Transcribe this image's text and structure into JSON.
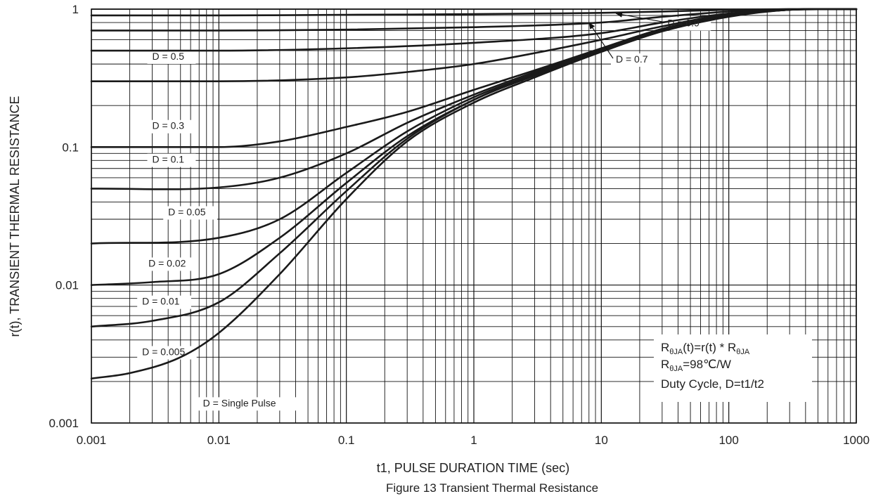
{
  "chart_data": {
    "type": "line",
    "title": "Figure 13 Transient Thermal Resistance",
    "xlabel": "t1, PULSE DURATION TIME (sec)",
    "ylabel": "r(t), TRANSIENT THERMAL RESISTANCE",
    "xscale": "log",
    "yscale": "log",
    "xlim": [
      0.001,
      1000
    ],
    "ylim": [
      0.001,
      1
    ],
    "grid": true,
    "x_ticks": [
      "0.001",
      "0.01",
      "0.1",
      "1",
      "10",
      "100",
      "1000"
    ],
    "y_ticks": [
      "0.001",
      "0.01",
      "0.1",
      "1"
    ],
    "series": [
      {
        "name": "D = 0.9",
        "x": [
          0.001,
          0.01,
          0.1,
          1,
          10,
          30,
          100,
          300,
          1000
        ],
        "y": [
          0.9,
          0.9,
          0.91,
          0.92,
          0.94,
          0.96,
          0.99,
          1.0,
          1.0
        ]
      },
      {
        "name": "D = 0.7",
        "x": [
          0.001,
          0.01,
          0.1,
          1,
          10,
          30,
          100,
          300,
          1000
        ],
        "y": [
          0.7,
          0.7,
          0.71,
          0.74,
          0.8,
          0.88,
          0.96,
          1.0,
          1.0
        ]
      },
      {
        "name": "D = 0.5",
        "x": [
          0.001,
          0.01,
          0.1,
          1,
          10,
          30,
          100,
          300,
          1000
        ],
        "y": [
          0.5,
          0.5,
          0.52,
          0.57,
          0.67,
          0.8,
          0.93,
          0.99,
          1.0
        ]
      },
      {
        "name": "D = 0.3",
        "x": [
          0.001,
          0.01,
          0.1,
          0.3,
          1,
          3,
          10,
          30,
          100,
          300,
          1000
        ],
        "y": [
          0.3,
          0.3,
          0.32,
          0.35,
          0.4,
          0.48,
          0.6,
          0.75,
          0.92,
          0.99,
          1.0
        ]
      },
      {
        "name": "D = 0.1",
        "x": [
          0.001,
          0.01,
          0.03,
          0.1,
          0.3,
          1,
          3,
          10,
          30,
          100,
          300,
          1000
        ],
        "y": [
          0.1,
          0.1,
          0.11,
          0.14,
          0.18,
          0.26,
          0.36,
          0.52,
          0.72,
          0.9,
          0.99,
          1.0
        ]
      },
      {
        "name": "D = 0.05",
        "x": [
          0.001,
          0.01,
          0.03,
          0.1,
          0.3,
          1,
          3,
          10,
          30,
          100,
          300,
          1000
        ],
        "y": [
          0.05,
          0.051,
          0.06,
          0.09,
          0.15,
          0.24,
          0.35,
          0.51,
          0.71,
          0.89,
          0.99,
          1.0
        ]
      },
      {
        "name": "D = 0.02",
        "x": [
          0.001,
          0.01,
          0.03,
          0.1,
          0.3,
          1,
          3,
          10,
          30,
          100,
          300,
          1000
        ],
        "y": [
          0.02,
          0.022,
          0.03,
          0.065,
          0.13,
          0.23,
          0.34,
          0.5,
          0.7,
          0.89,
          0.99,
          1.0
        ]
      },
      {
        "name": "D = 0.01",
        "x": [
          0.001,
          0.003,
          0.01,
          0.03,
          0.1,
          0.3,
          1,
          3,
          10,
          30,
          100,
          300,
          1000
        ],
        "y": [
          0.01,
          0.0105,
          0.012,
          0.022,
          0.055,
          0.12,
          0.22,
          0.34,
          0.5,
          0.7,
          0.89,
          0.99,
          1.0
        ]
      },
      {
        "name": "D = 0.005",
        "x": [
          0.001,
          0.003,
          0.01,
          0.03,
          0.1,
          0.3,
          1,
          3,
          10,
          30,
          100,
          300,
          1000
        ],
        "y": [
          0.005,
          0.0055,
          0.0075,
          0.017,
          0.048,
          0.115,
          0.22,
          0.33,
          0.5,
          0.7,
          0.89,
          0.99,
          1.0
        ]
      },
      {
        "name": "D = Single Pulse",
        "x": [
          0.001,
          0.002,
          0.005,
          0.01,
          0.03,
          0.1,
          0.3,
          1,
          3,
          10,
          30,
          100,
          300,
          1000
        ],
        "y": [
          0.0021,
          0.0023,
          0.003,
          0.0045,
          0.012,
          0.042,
          0.11,
          0.21,
          0.32,
          0.49,
          0.69,
          0.88,
          0.99,
          1.0
        ]
      }
    ],
    "annotations": [
      {
        "text": "D = 0.9",
        "x": 33,
        "y": 0.75,
        "arrow_to": [
          13,
          0.93
        ]
      },
      {
        "text": "D = 0.7",
        "x": 13,
        "y": 0.41,
        "arrow_to": [
          8,
          0.8
        ]
      },
      {
        "text": "D = 0.5",
        "x": 0.003,
        "y": 0.43
      },
      {
        "text": "D = 0.3",
        "x": 0.003,
        "y": 0.135
      },
      {
        "text": "D = 0.1",
        "x": 0.003,
        "y": 0.077
      },
      {
        "text": "D = 0.05",
        "x": 0.004,
        "y": 0.032
      },
      {
        "text": "D = 0.02",
        "x": 0.0028,
        "y": 0.0136
      },
      {
        "text": "D = 0.01",
        "x": 0.0025,
        "y": 0.0072
      },
      {
        "text": "D = 0.005",
        "x": 0.0025,
        "y": 0.0031
      },
      {
        "text": "D = Single Pulse",
        "x": 0.0075,
        "y": 0.00132
      }
    ]
  },
  "note": {
    "line1": {
      "pre": "R",
      "sub1": "θJA",
      "mid": "(t)=r(t) * R",
      "sub2": "θJA"
    },
    "line2": {
      "pre": "R",
      "sub": "θJA",
      "post": "=98℃/W"
    },
    "line3": "Duty Cycle, D=t1/t2"
  }
}
